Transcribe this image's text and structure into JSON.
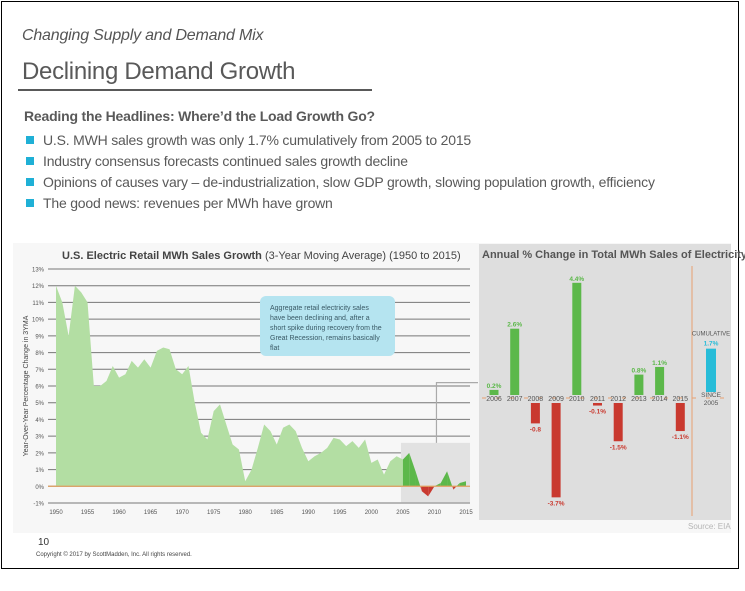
{
  "header": {
    "section_title": "Changing Supply and Demand Mix",
    "page_title": "Declining Demand Growth"
  },
  "content": {
    "subhead": "Reading the Headlines: Where’d the Load Growth Go?",
    "bullets": [
      "U.S. MWH sales growth was only 1.7% cumulatively from 2005 to 2015",
      "Industry consensus forecasts continued sales growth decline",
      "Opinions of causes vary – de-industrialization, slow GDP growth, slowing population growth, efficiency",
      "The good news: revenues per MWh have grown"
    ],
    "bullet_color": "#1fb0d6"
  },
  "footer": {
    "page_number": "10",
    "copyright": "Copyright © 2017 by ScottMadden, Inc. All rights reserved.",
    "source": "Source: EIA"
  },
  "chart_data": [
    {
      "type": "area",
      "title": "U.S. Electric Retail MWh Sales Growth",
      "title_suffix": "(3-Year Moving Average) (1950 to 2015)",
      "xlabel": "",
      "ylabel": "Year-Over-Year Percentage Change in 3YMA",
      "ylim": [
        -1,
        13
      ],
      "yticks": [
        13,
        12,
        11,
        10,
        9,
        8,
        7,
        6,
        5,
        4,
        3,
        2,
        1,
        0,
        -1
      ],
      "ytick_labels": [
        "13%",
        "12%",
        "11%",
        "10%",
        "9%",
        "8%",
        "7%",
        "6%",
        "5%",
        "4%",
        "3%",
        "2%",
        "1%",
        "0%",
        "-1%"
      ],
      "xlim": [
        1950,
        2015
      ],
      "xticks": [
        1950,
        1955,
        1960,
        1965,
        1970,
        1975,
        1980,
        1985,
        1990,
        1995,
        2000,
        2005,
        2010,
        2015
      ],
      "grid": true,
      "series": [
        {
          "name": "3YMA growth",
          "x": [
            1950,
            1951,
            1952,
            1953,
            1954,
            1955,
            1956,
            1957,
            1958,
            1959,
            1960,
            1961,
            1962,
            1963,
            1964,
            1965,
            1966,
            1967,
            1968,
            1969,
            1970,
            1971,
            1972,
            1973,
            1974,
            1975,
            1976,
            1977,
            1978,
            1979,
            1980,
            1981,
            1982,
            1983,
            1984,
            1985,
            1986,
            1987,
            1988,
            1989,
            1990,
            1991,
            1992,
            1993,
            1994,
            1995,
            1996,
            1997,
            1998,
            1999,
            2000,
            2001,
            2002,
            2003,
            2004,
            2005,
            2006,
            2007,
            2008,
            2009,
            2010,
            2011,
            2012,
            2013,
            2014,
            2015
          ],
          "values": [
            12.0,
            11.0,
            9.0,
            12.0,
            11.6,
            11.0,
            6.0,
            6.0,
            6.3,
            7.2,
            6.5,
            6.7,
            7.5,
            7.1,
            7.6,
            7.1,
            8.1,
            8.3,
            8.2,
            7.0,
            6.7,
            7.2,
            5.0,
            3.2,
            2.8,
            4.5,
            4.9,
            3.7,
            2.5,
            2.2,
            0.3,
            1.0,
            2.3,
            3.7,
            3.3,
            2.5,
            3.5,
            3.7,
            3.3,
            2.3,
            1.5,
            1.8,
            2.0,
            2.3,
            2.9,
            2.8,
            2.4,
            2.7,
            2.3,
            2.8,
            1.4,
            1.6,
            0.7,
            1.5,
            1.8,
            1.6,
            2.0,
            0.9,
            -0.3,
            -0.6,
            0.0,
            0.2,
            0.9,
            -0.2,
            0.2,
            0.3
          ],
          "color": "#b3dea3",
          "highlight_from": 2005,
          "highlight_positive_color": "#5cb84a",
          "highlight_negative_color": "#c9392f"
        }
      ],
      "zero_line_color": "#e0a060",
      "annotation": "Aggregate retail electricity sales have been declining and, after a short spike during recovery from the Great Recession, remains basically flat",
      "highlight_range": [
        2005,
        2015
      ]
    },
    {
      "type": "bar",
      "title": "Annual % Change in Total MWh Sales of Electricity",
      "categories": [
        "2006",
        "2007",
        "2008",
        "2009",
        "2010",
        "2011",
        "2012",
        "2013",
        "2014",
        "2015"
      ],
      "values": [
        0.2,
        2.6,
        -0.8,
        -3.7,
        4.4,
        -0.1,
        -1.5,
        0.8,
        1.1,
        -1.1
      ],
      "value_labels": [
        "0.2%",
        "2.6%",
        "-0.8",
        "-3.7%",
        "4.4%",
        "-0.1%",
        "-1.5%",
        "0.8%",
        "1.1%",
        "-1.1%"
      ],
      "positive_color": "#5cb84a",
      "negative_color": "#c9392f",
      "cumulative": {
        "label_top": "CUMULATIVE",
        "value": 1.7,
        "value_label": "1.7%",
        "category": [
          "SINCE",
          "2005"
        ],
        "color": "#27bcd8"
      },
      "axis_color": "#e8a070"
    }
  ]
}
